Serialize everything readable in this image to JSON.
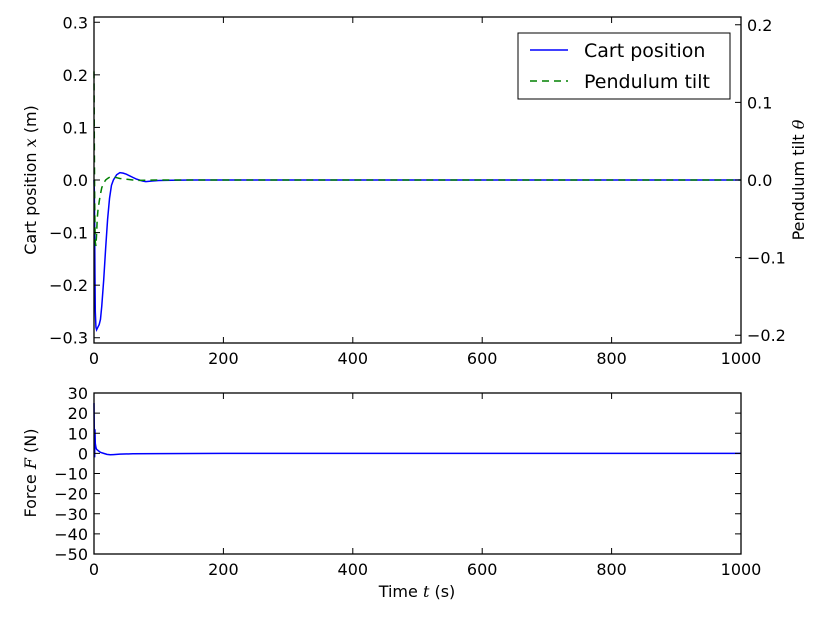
{
  "chart_data": [
    {
      "type": "line",
      "xlabel_prefix": "",
      "ylabel": "Cart position x (m)",
      "ylabel_prefix": "Cart position ",
      "ylabel_var": "x",
      "ylabel_suffix": " (m)",
      "y2label_prefix": "Pendulum tilt ",
      "y2label_var": "θ",
      "xlim": [
        0,
        1000
      ],
      "ylim": [
        -0.31,
        0.31
      ],
      "y2lim": [
        -0.21,
        0.21
      ],
      "xticks": [
        "0",
        "200",
        "400",
        "600",
        "800",
        "1000"
      ],
      "xtick_values": [
        0,
        200,
        400,
        600,
        800,
        1000
      ],
      "yticks": [
        "−0.3",
        "−0.2",
        "−0.1",
        "0.0",
        "0.1",
        "0.2",
        "0.3"
      ],
      "ytick_values": [
        -0.3,
        -0.2,
        -0.1,
        0.0,
        0.1,
        0.2,
        0.3
      ],
      "y2ticks": [
        "−0.2",
        "−0.1",
        "0.0",
        "0.1",
        "0.2"
      ],
      "y2tick_values": [
        -0.2,
        -0.1,
        0.0,
        0.1,
        0.2
      ],
      "grid": false,
      "legend_position": "top-right",
      "series": [
        {
          "name": "Cart position",
          "axis": "left",
          "style": "solid",
          "color": "#0000ff",
          "x": [
            0,
            0.5,
            1,
            1.5,
            2,
            3,
            4,
            6,
            8,
            10,
            12,
            15,
            18,
            21,
            24,
            27,
            30,
            35,
            40,
            45,
            50,
            55,
            60,
            65,
            70,
            75,
            80,
            90,
            100,
            120,
            150,
            200,
            300,
            500,
            700,
            1000
          ],
          "y": [
            0.0,
            -0.02,
            -0.09,
            -0.18,
            -0.25,
            -0.28,
            -0.285,
            -0.28,
            -0.275,
            -0.265,
            -0.24,
            -0.19,
            -0.13,
            -0.075,
            -0.035,
            -0.01,
            0.0,
            0.01,
            0.014,
            0.013,
            0.011,
            0.008,
            0.005,
            0.002,
            0.0,
            -0.002,
            -0.003,
            -0.002,
            -0.001,
            -0.0005,
            0.0,
            0.0,
            0.0,
            0.0,
            0.0,
            0.0
          ]
        },
        {
          "name": "Pendulum tilt",
          "axis": "right",
          "style": "dashed",
          "color": "#008000",
          "x": [
            0,
            0.5,
            1,
            1.5,
            2,
            3,
            4,
            5,
            6,
            8,
            10,
            12,
            15,
            18,
            21,
            25,
            30,
            35,
            40,
            50,
            60,
            70,
            100,
            200,
            1000
          ],
          "y": [
            0.14,
            0.05,
            -0.02,
            -0.06,
            -0.08,
            -0.085,
            -0.07,
            -0.05,
            -0.04,
            -0.028,
            -0.018,
            -0.01,
            -0.004,
            0.0,
            0.002,
            0.004,
            0.004,
            0.003,
            0.002,
            0.001,
            0.0,
            -0.0005,
            0.0,
            0.0,
            0.0
          ]
        }
      ]
    },
    {
      "type": "line",
      "xlabel": "Time t (s)",
      "xlabel_prefix": "Time ",
      "xlabel_var": "t",
      "xlabel_suffix": " (s)",
      "ylabel": "Force F (N)",
      "ylabel_prefix": "Force ",
      "ylabel_var": "F",
      "ylabel_suffix": " (N)",
      "xlim": [
        0,
        1000
      ],
      "ylim": [
        -50,
        30
      ],
      "xticks": [
        "0",
        "200",
        "400",
        "600",
        "800",
        "1000"
      ],
      "xtick_values": [
        0,
        200,
        400,
        600,
        800,
        1000
      ],
      "yticks": [
        "−50",
        "−40",
        "−30",
        "−20",
        "−10",
        "0",
        "10",
        "20",
        "30"
      ],
      "ytick_values": [
        -50,
        -40,
        -30,
        -20,
        -10,
        0,
        10,
        20,
        30
      ],
      "grid": false,
      "series": [
        {
          "name": "Force",
          "style": "solid",
          "color": "#0000ff",
          "x": [
            0,
            0.5,
            1,
            1.5,
            2,
            3,
            4,
            6,
            8,
            10,
            15,
            20,
            25,
            30,
            40,
            60,
            100,
            200,
            400,
            1000
          ],
          "y": [
            25,
            10,
            -2,
            12,
            5,
            3,
            2,
            1.5,
            1,
            0.5,
            0,
            -0.5,
            -0.7,
            -0.6,
            -0.4,
            -0.2,
            -0.1,
            0,
            0,
            0
          ]
        }
      ]
    }
  ]
}
